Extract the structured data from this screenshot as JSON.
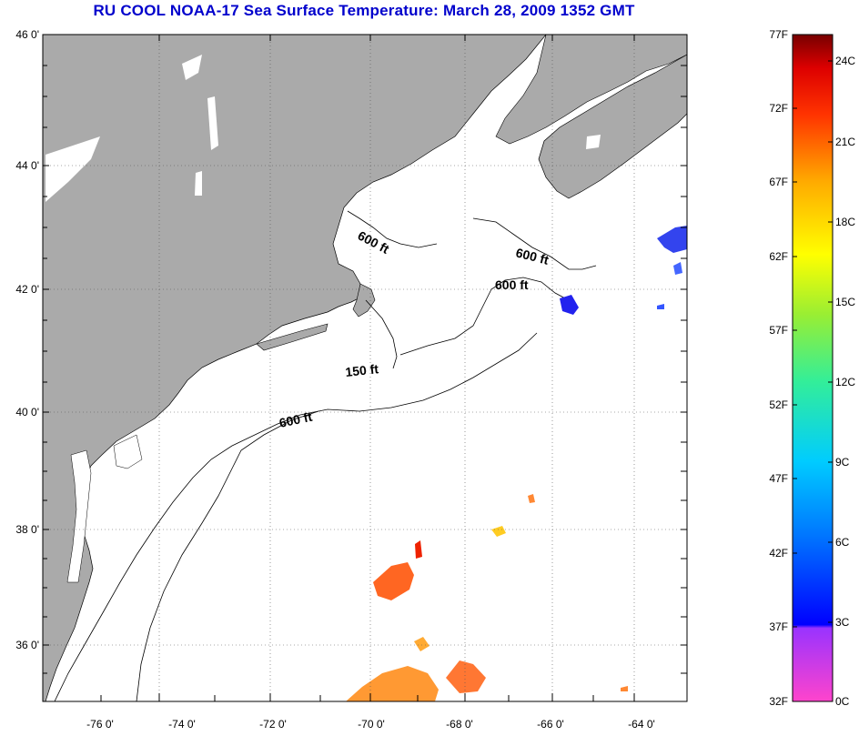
{
  "title": "RU COOL  NOAA-17  Sea Surface Temperature:  March 28, 2009 1352 GMT",
  "map": {
    "lat_labels": [
      "46 0'",
      "44 0'",
      "42 0'",
      "40 0'",
      "38 0'",
      "36 0'"
    ],
    "lon_labels": [
      "-76 0'",
      "-74 0'",
      "-72 0'",
      "-70 0'",
      "-68 0'",
      "-66 0'",
      "-64 0'"
    ],
    "contour_labels": [
      "600 ft",
      "600 ft",
      "600 ft",
      "150 ft",
      "600 ft"
    ],
    "land_color": "#aaaaaa",
    "ocean_color": "#ffffff"
  },
  "colorbar": {
    "fahrenheit_labels": [
      "77F",
      "72F",
      "67F",
      "62F",
      "57F",
      "52F",
      "47F",
      "42F",
      "37F",
      "32F"
    ],
    "celsius_labels": [
      "24C",
      "21C",
      "18C",
      "15C",
      "12C",
      "9C",
      "6C",
      "3C",
      "0C"
    ]
  }
}
